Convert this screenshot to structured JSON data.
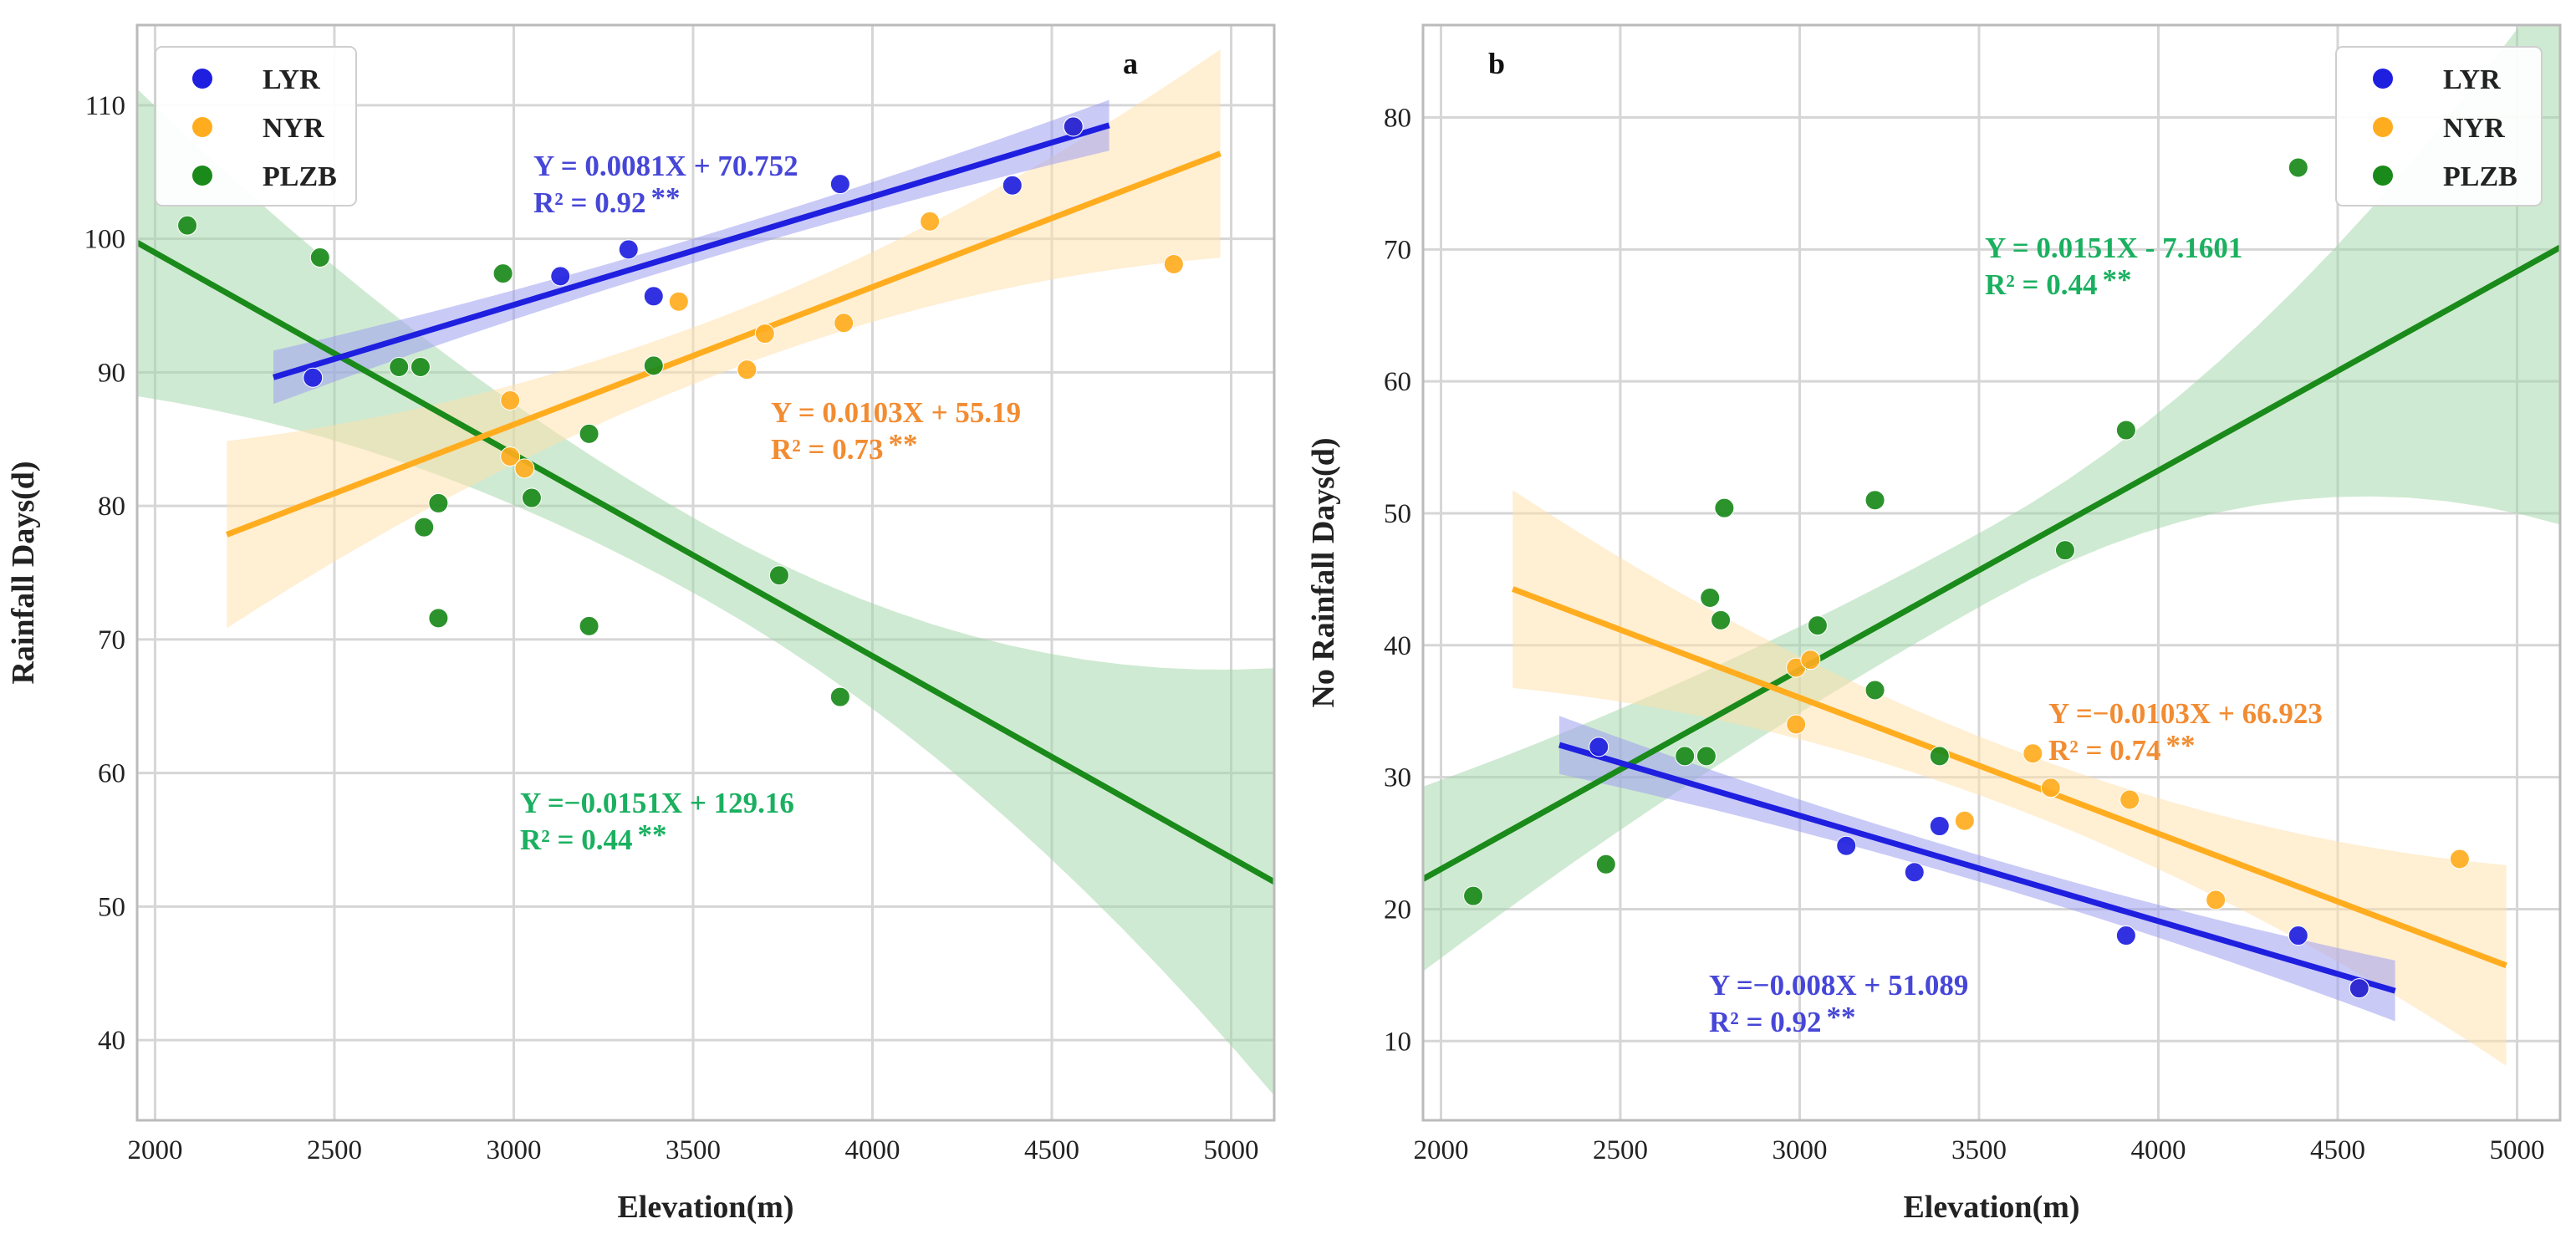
{
  "colors": {
    "LYR": "#1f1fe0",
    "NYR": "#ffad1f",
    "PLZB": "#1a8a1a",
    "LYR_eq": "#4646d8",
    "NYR_eq": "#f28c32",
    "PLZB_eq": "#1ab060",
    "LYR_band": "#9f9ff0",
    "NYR_band": "#ffe0a8",
    "PLZB_band": "#9fd6a5"
  },
  "chart_data": [
    {
      "type": "scatter",
      "panel": "a",
      "title": "",
      "xlabel": "Elevation(m)",
      "ylabel": "Rainfall Days(d)",
      "xlim": [
        1950,
        5120
      ],
      "ylim": [
        34,
        116
      ],
      "xticks": [
        "2000",
        "2500",
        "3000",
        "3500",
        "4000",
        "4500",
        "5000"
      ],
      "yticks": [
        "40",
        "50",
        "60",
        "70",
        "80",
        "90",
        "100",
        "110"
      ],
      "grid": true,
      "legend": {
        "position": "top-left",
        "entries": [
          "LYR",
          "NYR",
          "PLZB"
        ]
      },
      "series": [
        {
          "name": "LYR",
          "points": [
            [
              2440,
              89.6
            ],
            [
              3130,
              97.2
            ],
            [
              3320,
              99.2
            ],
            [
              3390,
              95.7
            ],
            [
              3910,
              104.1
            ],
            [
              4390,
              104.0
            ],
            [
              4560,
              108.4
            ]
          ],
          "fit": {
            "x": [
              2330,
              4660
            ],
            "slope": 0.0081,
            "intercept": 70.752,
            "band": [
              2.0,
              0.9,
              1.9
            ]
          },
          "equation": "Y = 0.0081X + 70.752",
          "r2": "R² = 0.92",
          "sig": "**"
        },
        {
          "name": "NYR",
          "points": [
            [
              2990,
              87.9
            ],
            [
              2990,
              83.7
            ],
            [
              3030,
              82.8
            ],
            [
              3460,
              95.3
            ],
            [
              3650,
              90.2
            ],
            [
              3700,
              92.9
            ],
            [
              3920,
              93.7
            ],
            [
              4160,
              101.3
            ],
            [
              4560,
              108.4
            ],
            [
              4840,
              98.1
            ]
          ],
          "fit": {
            "x": [
              2200,
              4970
            ],
            "slope": 0.0103,
            "intercept": 55.19,
            "band": [
              7.0,
              2.1,
              7.8
            ]
          },
          "equation": "Y = 0.0103X + 55.19",
          "r2": "R² = 0.73",
          "sig": "**"
        },
        {
          "name": "PLZB",
          "points": [
            [
              2090,
              101.0
            ],
            [
              2460,
              98.6
            ],
            [
              2680,
              90.4
            ],
            [
              2740,
              90.4
            ],
            [
              2750,
              78.4
            ],
            [
              2790,
              80.2
            ],
            [
              2790,
              71.6
            ],
            [
              2970,
              97.4
            ],
            [
              3050,
              80.6
            ],
            [
              3210,
              85.4
            ],
            [
              3210,
              71.0
            ],
            [
              3390,
              90.5
            ],
            [
              3740,
              74.8
            ],
            [
              3910,
              65.7
            ]
          ],
          "fit": {
            "x": [
              1950,
              5120
            ],
            "slope": -0.0151,
            "intercept": 129.16,
            "band": [
              11.5,
              2.8,
              16.0
            ]
          },
          "equation": "Y =−0.0151X + 129.16",
          "r2": "R² = 0.44",
          "sig": "**"
        }
      ]
    },
    {
      "type": "scatter",
      "panel": "b",
      "title": "",
      "xlabel": "Elevation(m)",
      "ylabel": "No Rainfall Days(d)",
      "xlim": [
        1950,
        5120
      ],
      "ylim": [
        4,
        87
      ],
      "xticks": [
        "2000",
        "2500",
        "3000",
        "3500",
        "4000",
        "4500",
        "5000"
      ],
      "yticks": [
        "10",
        "20",
        "30",
        "40",
        "50",
        "60",
        "70",
        "80"
      ],
      "grid": true,
      "legend": {
        "position": "top-right",
        "entries": [
          "LYR",
          "NYR",
          "PLZB"
        ]
      },
      "series": [
        {
          "name": "LYR",
          "points": [
            [
              2440,
              32.3
            ],
            [
              3130,
              24.8
            ],
            [
              3320,
              22.8
            ],
            [
              3390,
              26.3
            ],
            [
              3910,
              18.0
            ],
            [
              4390,
              18.0
            ],
            [
              4560,
              14.0
            ]
          ],
          "fit": {
            "x": [
              2330,
              4660
            ],
            "slope": -0.008,
            "intercept": 51.089,
            "band": [
              2.2,
              1.0,
              2.3
            ]
          },
          "equation": "Y =−0.008X + 51.089",
          "r2": "R² = 0.92",
          "sig": "**"
        },
        {
          "name": "NYR",
          "points": [
            [
              2990,
              38.3
            ],
            [
              2990,
              34.0
            ],
            [
              3030,
              38.9
            ],
            [
              3460,
              26.7
            ],
            [
              3650,
              31.8
            ],
            [
              3700,
              29.2
            ],
            [
              3920,
              28.3
            ],
            [
              4160,
              20.7
            ],
            [
              4560,
              14.0
            ],
            [
              4840,
              23.8
            ]
          ],
          "fit": {
            "x": [
              2200,
              4970
            ],
            "slope": -0.0103,
            "intercept": 66.923,
            "band": [
              7.5,
              2.2,
              7.6
            ]
          },
          "equation": "Y =−0.0103X + 66.923",
          "r2": "R² = 0.74",
          "sig": "**"
        },
        {
          "name": "PLZB",
          "points": [
            [
              2090,
              21.0
            ],
            [
              2460,
              23.4
            ],
            [
              2680,
              31.6
            ],
            [
              2740,
              31.6
            ],
            [
              2750,
              43.6
            ],
            [
              2780,
              41.9
            ],
            [
              2790,
              50.4
            ],
            [
              3050,
              41.5
            ],
            [
              3210,
              36.6
            ],
            [
              3210,
              51.0
            ],
            [
              3390,
              31.6
            ],
            [
              3740,
              47.2
            ],
            [
              3910,
              56.3
            ],
            [
              4390,
              76.2
            ]
          ],
          "fit": {
            "x": [
              1950,
              5120
            ],
            "slope": 0.0151,
            "intercept": -7.1601,
            "band": [
              7.0,
              2.8,
              21.0
            ]
          },
          "equation": "Y = 0.0151X - 7.1601",
          "r2": "R² = 0.44",
          "sig": "**"
        }
      ]
    }
  ]
}
